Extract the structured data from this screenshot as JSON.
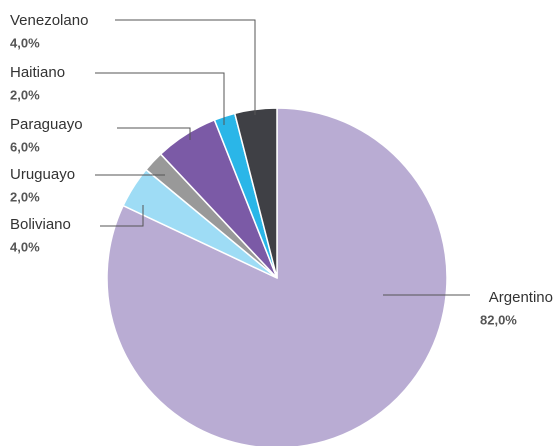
{
  "chart_data": {
    "type": "pie",
    "categories": [
      "Argentino",
      "Boliviano",
      "Uruguayo",
      "Paraguayo",
      "Haitiano",
      "Venezolano"
    ],
    "values": [
      82,
      4,
      2,
      6,
      2,
      4
    ],
    "value_labels": [
      "82,0%",
      "4,0%",
      "2,0%",
      "6,0%",
      "2,0%",
      "4,0%"
    ],
    "colors": [
      "#b9acd3",
      "#9edcf5",
      "#999999",
      "#7b5aa6",
      "#2ab6e8",
      "#3f4045"
    ]
  }
}
